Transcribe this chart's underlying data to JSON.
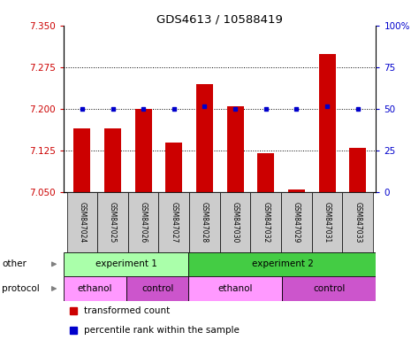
{
  "title": "GDS4613 / 10588419",
  "samples": [
    "GSM847024",
    "GSM847025",
    "GSM847026",
    "GSM847027",
    "GSM847028",
    "GSM847030",
    "GSM847032",
    "GSM847029",
    "GSM847031",
    "GSM847033"
  ],
  "transformed_count": [
    7.165,
    7.165,
    7.2,
    7.14,
    7.245,
    7.205,
    7.12,
    7.055,
    7.3,
    7.13
  ],
  "percentile_rank": [
    50,
    50,
    50,
    50,
    52,
    50,
    50,
    50,
    52,
    50
  ],
  "ylim_left": [
    7.05,
    7.35
  ],
  "ylim_right": [
    0,
    100
  ],
  "yticks_left": [
    7.05,
    7.125,
    7.2,
    7.275,
    7.35
  ],
  "yticks_right": [
    0,
    25,
    50,
    75,
    100
  ],
  "ytick_labels_right": [
    "0",
    "25",
    "50",
    "75",
    "100%"
  ],
  "hlines": [
    7.125,
    7.2,
    7.275
  ],
  "bar_color": "#cc0000",
  "dot_color": "#0000cc",
  "bar_bottom": 7.05,
  "exp1_range": [
    0,
    4
  ],
  "exp2_range": [
    4,
    10
  ],
  "exp1_color": "#aaffaa",
  "exp2_color": "#44cc44",
  "ethanol_color": "#ff99ff",
  "control_color": "#cc55cc",
  "proto_groups": [
    {
      "label": "ethanol",
      "start": 0,
      "end": 2,
      "color": "#ff99ff"
    },
    {
      "label": "control",
      "start": 2,
      "end": 4,
      "color": "#cc55cc"
    },
    {
      "label": "ethanol",
      "start": 4,
      "end": 7,
      "color": "#ff99ff"
    },
    {
      "label": "control",
      "start": 7,
      "end": 10,
      "color": "#cc55cc"
    }
  ],
  "tick_color_left": "#cc0000",
  "tick_color_right": "#0000cc",
  "gray_bg": "#cccccc"
}
